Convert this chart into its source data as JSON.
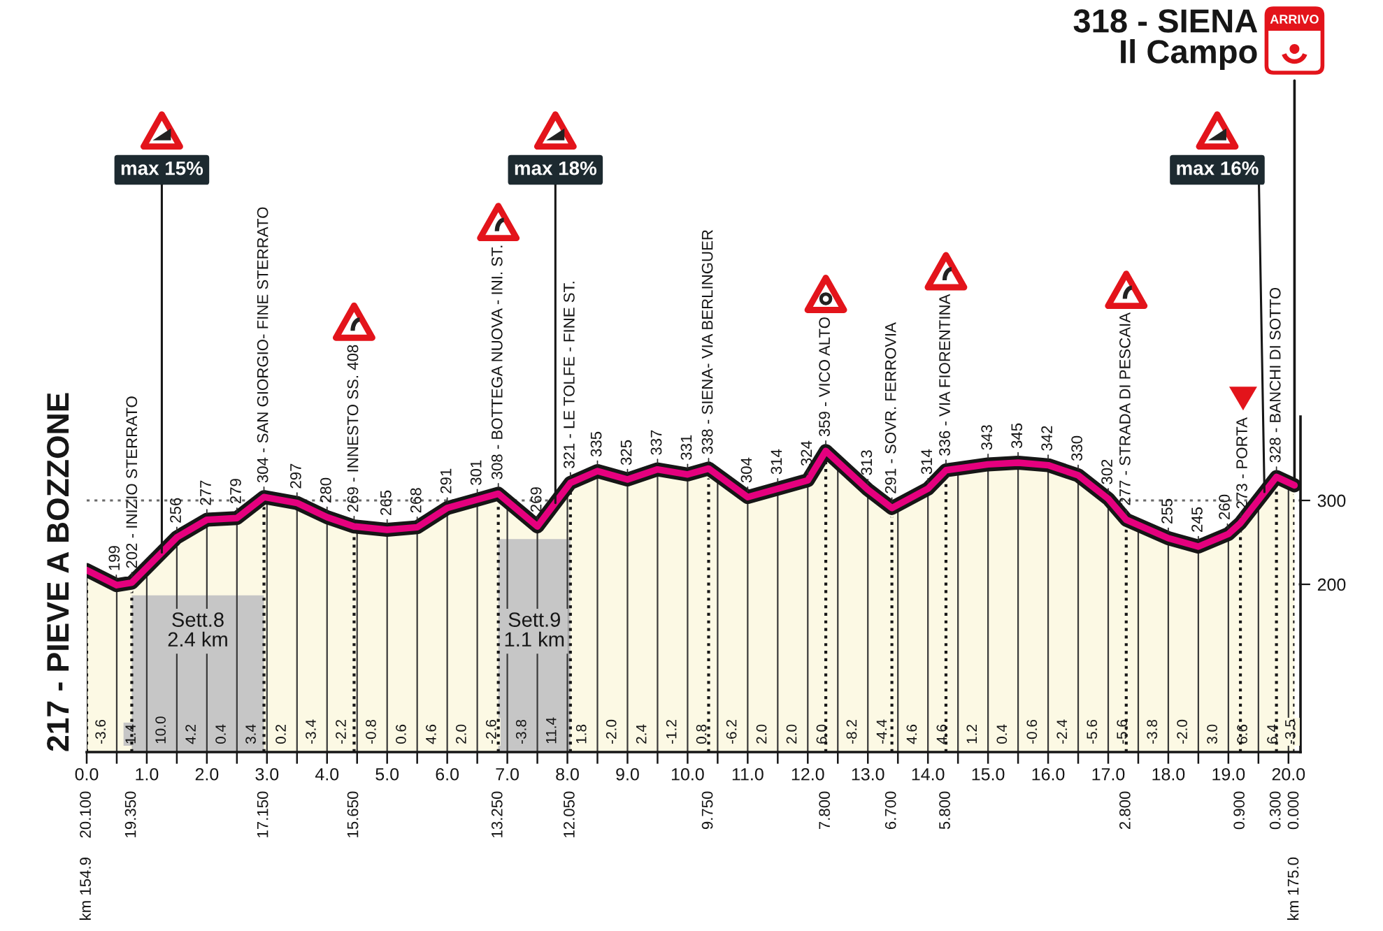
{
  "chart_data": {
    "type": "area",
    "color": "#e5007e",
    "x": [
      0,
      0.5,
      0.75,
      1.5,
      2,
      2.5,
      2.95,
      3.5,
      4,
      4.45,
      5,
      5.5,
      6,
      6.5,
      6.85,
      7.5,
      8.05,
      8.5,
      9,
      9.5,
      10,
      10.35,
      11,
      11.5,
      12,
      12.3,
      13,
      13.4,
      14,
      14.3,
      15,
      15.5,
      16,
      16.5,
      17,
      17.3,
      18,
      18.5,
      19,
      19.2,
      19.8,
      20.1
    ],
    "values": [
      217,
      199,
      202,
      256,
      277,
      279,
      304,
      297,
      280,
      269,
      265,
      268,
      291,
      301,
      308,
      269,
      321,
      335,
      325,
      337,
      331,
      338,
      304,
      314,
      324,
      359,
      313,
      291,
      314,
      336,
      343,
      345,
      342,
      330,
      302,
      277,
      255,
      245,
      260,
      273,
      328,
      318
    ],
    "value_labels": [
      "217 - PIEVE A BOZZONE",
      "199",
      "202 - INIZIO STERRATO",
      "256",
      "277",
      "279",
      "304 - SAN GIORGIO- FINE STERRATO",
      "297",
      "280",
      "269 - INNESTO SS. 408",
      "265",
      "268",
      "291",
      "301",
      "308 - BOTTEGA NUOVA - INI. ST.",
      "269",
      "321 - LE TOLFE - FINE ST.",
      "335",
      "325",
      "337",
      "331",
      "338 - SIENA- VIA BERLINGUER",
      "304",
      "314",
      "324",
      "359 - VICO ALTO",
      "313",
      "291 - SOVR. FERROVIA",
      "314",
      "336 - VIA FIORENTINA",
      "343",
      "345",
      "342",
      "330",
      "302",
      "277 - STRADA DI PESCAIA",
      "255",
      "245",
      "260",
      "273 - PORTA",
      "328 - BANCHI DI SOTTO",
      "318 - SIENA\nIl Campo"
    ],
    "xlim": [
      0,
      20.2
    ],
    "xticks": [
      {
        "value": 0,
        "label": "0.0"
      },
      {
        "value": 0.5,
        "label": null
      },
      {
        "value": 1,
        "label": "1.0"
      },
      {
        "value": 1.5,
        "label": null
      },
      {
        "value": 2,
        "label": "2.0"
      },
      {
        "value": 2.5,
        "label": null
      },
      {
        "value": 3,
        "label": "3.0"
      },
      {
        "value": 3.5,
        "label": null
      },
      {
        "value": 4,
        "label": "4.0"
      },
      {
        "value": 4.5,
        "label": null
      },
      {
        "value": 5,
        "label": "5.0"
      },
      {
        "value": 5.5,
        "label": null
      },
      {
        "value": 6,
        "label": "6.0"
      },
      {
        "value": 6.5,
        "label": null
      },
      {
        "value": 7,
        "label": "7.0"
      },
      {
        "value": 7.5,
        "label": null
      },
      {
        "value": 8,
        "label": "8.0"
      },
      {
        "value": 8.5,
        "label": null
      },
      {
        "value": 9,
        "label": "9.0"
      },
      {
        "value": 9.5,
        "label": null
      },
      {
        "value": 10,
        "label": "10.0"
      },
      {
        "value": 10.5,
        "label": null
      },
      {
        "value": 11,
        "label": "11.0"
      },
      {
        "value": 11.5,
        "label": null
      },
      {
        "value": 12,
        "label": "12.0"
      },
      {
        "value": 12.5,
        "label": null
      },
      {
        "value": 13,
        "label": "13.0"
      },
      {
        "value": 13.5,
        "label": null
      },
      {
        "value": 14,
        "label": "14.0"
      },
      {
        "value": 14.5,
        "label": null
      },
      {
        "value": 15,
        "label": "15.0"
      },
      {
        "value": 15.5,
        "label": null
      },
      {
        "value": 16,
        "label": "16.0"
      },
      {
        "value": 16.5,
        "label": null
      },
      {
        "value": 17,
        "label": "17.0"
      },
      {
        "value": 17.5,
        "label": null
      },
      {
        "value": 18,
        "label": "18.0"
      },
      {
        "value": 18.5,
        "label": null
      },
      {
        "value": 19,
        "label": "19.0"
      },
      {
        "value": 19.5,
        "label": null
      },
      {
        "value": 20,
        "label": "20.0"
      }
    ],
    "x2lim": [
      20.1,
      -0.1
    ],
    "x2ticks": [
      {
        "value": 20.1,
        "label": "20.100"
      },
      {
        "value": 19.35,
        "label": "19.350"
      },
      {
        "value": 17.15,
        "label": "17.150"
      },
      {
        "value": 15.65,
        "label": "15.650"
      },
      {
        "value": 13.25,
        "label": "13.250"
      },
      {
        "value": 12.05,
        "label": "12.050"
      },
      {
        "value": 9.75,
        "label": "9.750"
      },
      {
        "value": 7.8,
        "label": "7.800"
      },
      {
        "value": 6.7,
        "label": "6.700"
      },
      {
        "value": 5.8,
        "label": "5.800"
      },
      {
        "value": 2.8,
        "label": "2.800"
      },
      {
        "value": 0.9,
        "label": "0.900"
      },
      {
        "value": 0.3,
        "label": "0.300"
      },
      {
        "value": 0,
        "label": "0.000"
      }
    ],
    "ylim": [
      0,
      400
    ],
    "yticks": [
      200,
      300
    ],
    "grid": true,
    "bands": [
      {
        "axis": "x",
        "from": 0.75,
        "to": 2.95,
        "label": "Sett.8\n2.4 km",
        "color": "#c6c6c6"
      },
      {
        "axis": "x",
        "from": 6.85,
        "to": 8.05,
        "label": "Sett.9\n1.1 km",
        "color": "#c6c6c6"
      }
    ],
    "annotations": [
      {
        "text": "max 15%",
        "x": 1.25,
        "y": 238
      },
      {
        "text": "max 18%",
        "x": 7.8,
        "y": 297
      },
      {
        "text": "max 16%",
        "x": 19.6,
        "y": 310
      },
      {
        "text": "-3.6",
        "x": 0.25
      },
      {
        "text": "1.4",
        "x": 0.75
      },
      {
        "text": "10.0",
        "x": 1.25
      },
      {
        "text": "4.2",
        "x": 1.75
      },
      {
        "text": "0.4",
        "x": 2.25
      },
      {
        "text": "3.4",
        "x": 2.75
      },
      {
        "text": "0.2",
        "x": 3.25
      },
      {
        "text": "-3.4",
        "x": 3.75
      },
      {
        "text": "-2.2",
        "x": 4.25
      },
      {
        "text": "-0.8",
        "x": 4.75
      },
      {
        "text": "0.6",
        "x": 5.25
      },
      {
        "text": "4.6",
        "x": 5.75
      },
      {
        "text": "2.0",
        "x": 6.25
      },
      {
        "text": "-2.6",
        "x": 6.75
      },
      {
        "text": "-3.8",
        "x": 7.25
      },
      {
        "text": "11.4",
        "x": 7.75
      },
      {
        "text": "1.8",
        "x": 8.25
      },
      {
        "text": "-2.0",
        "x": 8.75
      },
      {
        "text": "2.4",
        "x": 9.25
      },
      {
        "text": "-1.2",
        "x": 9.75
      },
      {
        "text": "0.8",
        "x": 10.25
      },
      {
        "text": "-6.2",
        "x": 10.75
      },
      {
        "text": "2.0",
        "x": 11.25
      },
      {
        "text": "2.0",
        "x": 11.75
      },
      {
        "text": "6.0",
        "x": 12.25
      },
      {
        "text": "-8.2",
        "x": 12.75
      },
      {
        "text": "-4.4",
        "x": 13.25
      },
      {
        "text": "4.6",
        "x": 13.75
      },
      {
        "text": "4.6",
        "x": 14.25
      },
      {
        "text": "1.2",
        "x": 14.75
      },
      {
        "text": "0.4",
        "x": 15.25
      },
      {
        "text": "-0.6",
        "x": 15.75
      },
      {
        "text": "-2.4",
        "x": 16.25
      },
      {
        "text": "-5.6",
        "x": 16.75
      },
      {
        "text": "-5.6",
        "x": 17.25
      },
      {
        "text": "-3.8",
        "x": 17.75
      },
      {
        "text": "-2.0",
        "x": 18.25
      },
      {
        "text": "3.0",
        "x": 18.75
      },
      {
        "text": "6.6",
        "x": 19.25
      },
      {
        "text": "6.4",
        "x": 19.75
      },
      {
        "text": "-3.5",
        "x": 20.05
      },
      "km 154.9",
      "km 175.0",
      "ARRIVO"
    ]
  }
}
